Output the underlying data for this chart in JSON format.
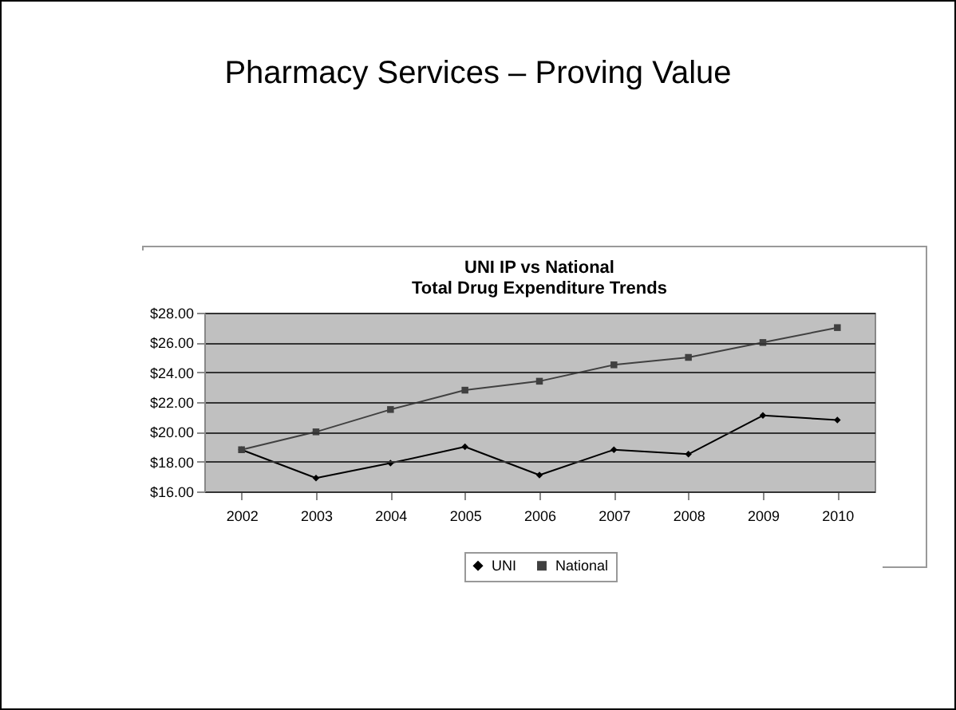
{
  "chart_data": {
    "type": "line",
    "title": "Pharmacy Services – Proving Value",
    "subtitle": "UNI IP vs National\nTotal Drug Expenditure Trends",
    "categories": [
      "2002",
      "2003",
      "2004",
      "2005",
      "2006",
      "2007",
      "2008",
      "2009",
      "2010"
    ],
    "series": [
      {
        "name": "UNI",
        "color": "#000000",
        "marker": "diamond",
        "values": [
          18.8,
          16.9,
          17.9,
          19.0,
          17.1,
          18.8,
          18.5,
          21.1,
          20.8
        ]
      },
      {
        "name": "National",
        "color": "#404040",
        "marker": "square",
        "values": [
          18.8,
          20.0,
          21.5,
          22.8,
          23.4,
          24.5,
          25.0,
          26.0,
          27.0
        ]
      }
    ],
    "ylim": [
      16,
      28
    ],
    "yticks": [
      {
        "value": 16,
        "label": "$16.00"
      },
      {
        "value": 18,
        "label": "$18.00"
      },
      {
        "value": 20,
        "label": "$20.00"
      },
      {
        "value": 22,
        "label": "$22.00"
      },
      {
        "value": 24,
        "label": "$24.00"
      },
      {
        "value": 26,
        "label": "$26.00"
      },
      {
        "value": 28,
        "label": "$28.00"
      }
    ],
    "grid": "y",
    "legend": "bottom",
    "line_style": "solid"
  }
}
